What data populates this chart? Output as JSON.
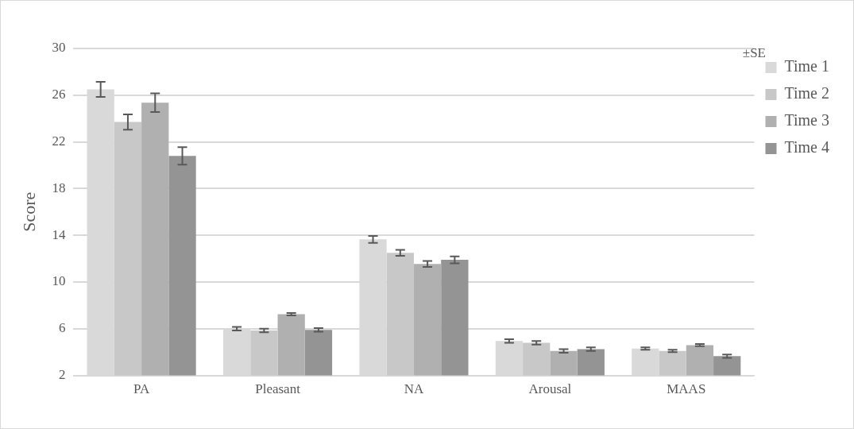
{
  "chart_data": {
    "type": "bar",
    "ylabel": "Score",
    "categories": [
      "PA",
      "Pleasant",
      "NA",
      "Arousal",
      "MAAS"
    ],
    "series": [
      {
        "name": "Time 1",
        "color": "#d9d9d9",
        "values": [
          26.5,
          6.0,
          13.65,
          4.95,
          4.3
        ],
        "errors": [
          0.65,
          0.15,
          0.3,
          0.15,
          0.1
        ]
      },
      {
        "name": "Time 2",
        "color": "#c8c8c8",
        "values": [
          23.7,
          5.85,
          12.5,
          4.8,
          4.1
        ],
        "errors": [
          0.65,
          0.15,
          0.25,
          0.15,
          0.1
        ]
      },
      {
        "name": "Time 3",
        "color": "#b0b0b0",
        "values": [
          25.35,
          7.25,
          11.55,
          4.1,
          4.6
        ],
        "errors": [
          0.8,
          0.1,
          0.25,
          0.15,
          0.1
        ]
      },
      {
        "name": "Time 4",
        "color": "#949494",
        "values": [
          20.8,
          5.9,
          11.9,
          4.25,
          3.65
        ],
        "errors": [
          0.75,
          0.15,
          0.3,
          0.15,
          0.15
        ]
      }
    ],
    "ylim": [
      2,
      30
    ],
    "yticks": [
      2,
      6,
      10,
      14,
      18,
      22,
      26,
      30
    ],
    "grid": "y",
    "legend": "right",
    "annotations": [
      "±SE"
    ]
  }
}
